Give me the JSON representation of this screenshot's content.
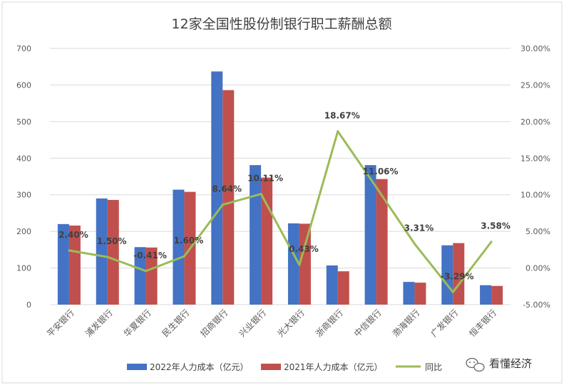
{
  "chart_data": {
    "type": "bar",
    "title": "12家全国性股份制银行职工薪酬总额",
    "categories": [
      "平安银行",
      "浦发银行",
      "华夏银行",
      "民生银行",
      "招商银行",
      "兴业银行",
      "光大银行",
      "浙商银行",
      "中信银行",
      "渤海银行",
      "广发银行",
      "恒丰银行"
    ],
    "series": [
      {
        "name": "2022年人力成本（亿元）",
        "axis": "left",
        "color": "#4472C4",
        "values": [
          220,
          290,
          157,
          314,
          637,
          381,
          222,
          107,
          381,
          62,
          162,
          53
        ]
      },
      {
        "name": "2021年人力成本（亿元）",
        "axis": "left",
        "color": "#C0504D",
        "values": [
          216,
          286,
          156,
          308,
          586,
          347,
          221,
          91,
          343,
          60,
          168,
          51
        ]
      },
      {
        "name": "同比",
        "axis": "right",
        "type": "line",
        "color": "#9BBB59",
        "values": [
          2.4,
          1.5,
          -0.41,
          1.6,
          8.64,
          10.11,
          0.43,
          18.67,
          11.06,
          3.31,
          -3.29,
          3.58
        ]
      }
    ],
    "data_labels": [
      "2.40%",
      "1.50%",
      "-0.41%",
      "1.60%",
      "8.64%",
      "10.11%",
      "0.43%",
      "18.67%",
      "11.06%",
      "3.31%",
      "-3.29%",
      "3.58%"
    ],
    "ylim": [
      0,
      700
    ],
    "yticks": [
      "0",
      "100",
      "200",
      "300",
      "400",
      "500",
      "600",
      "700"
    ],
    "y2lim": [
      -5,
      30
    ],
    "y2ticks": [
      "-5.00%",
      "0.00%",
      "5.00%",
      "10.00%",
      "15.00%",
      "20.00%",
      "25.00%",
      "30.00%"
    ],
    "grid": true,
    "legend_position": "bottom"
  },
  "watermark": {
    "icon": "wechat-icon",
    "text": "看懂经济"
  }
}
